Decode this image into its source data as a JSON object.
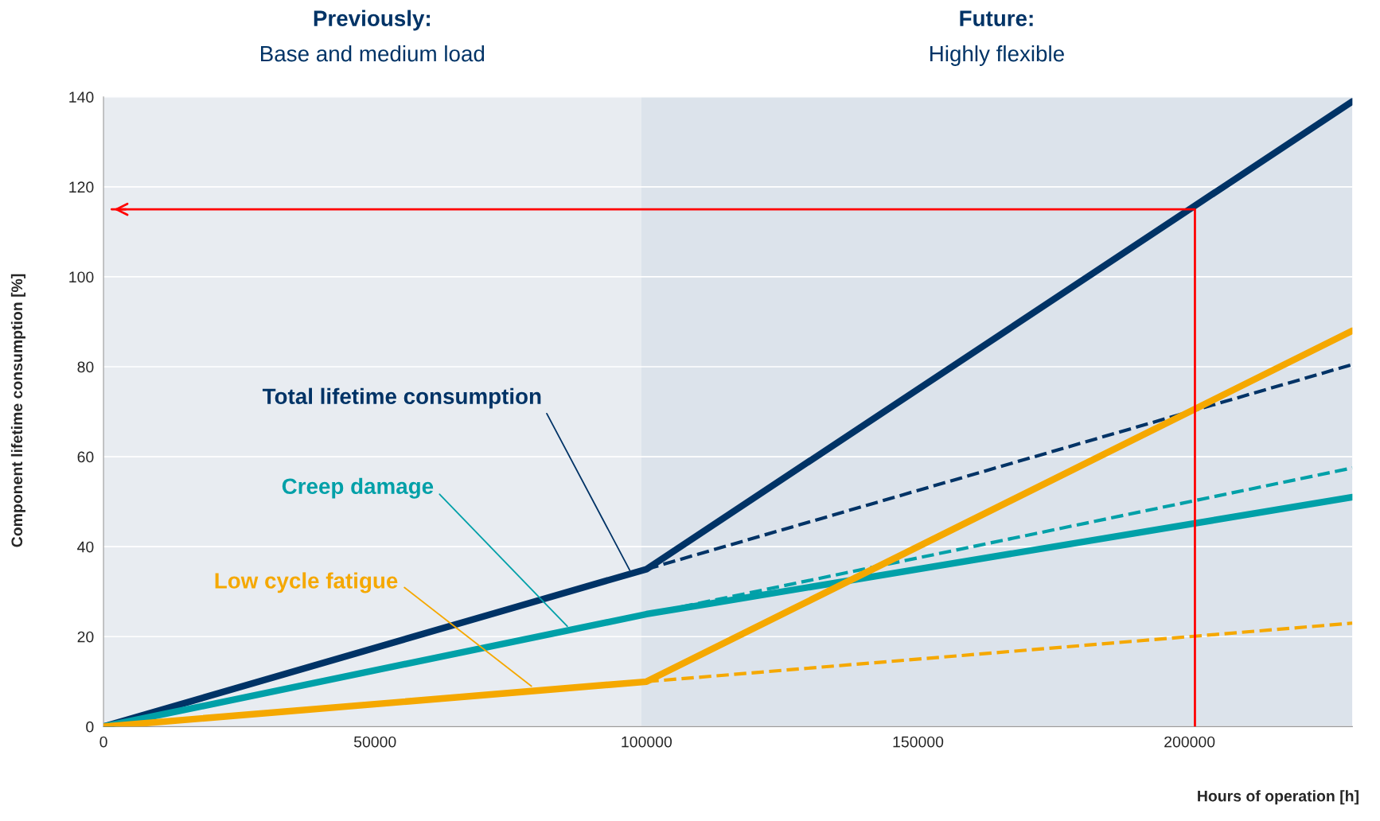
{
  "chart_data": {
    "type": "line",
    "xlabel": "Hours of operation [h]",
    "ylabel": "Component lifetime consumption [%]",
    "xlim": [
      0,
      230000
    ],
    "xticks": [
      0,
      50000,
      100000,
      150000,
      200000
    ],
    "ylim": [
      0,
      140
    ],
    "yticks": [
      0,
      20,
      40,
      60,
      80,
      100,
      120,
      140
    ],
    "grid": "y",
    "bands": [
      {
        "axis": "x",
        "from": 0,
        "to": 99000,
        "color": "#e8ecf1"
      },
      {
        "axis": "x",
        "from": 99000,
        "to": 230000,
        "color": "#dce3eb"
      }
    ],
    "series": [
      {
        "color": "#003366",
        "x": [
          0,
          100000,
          230000
        ],
        "values": [
          0,
          35,
          139
        ],
        "line_style": "solid"
      },
      {
        "color": "#003366",
        "x": [
          100000,
          230000
        ],
        "values": [
          35,
          80.5
        ],
        "line_style": "dashed"
      },
      {
        "color": "#00a0a8",
        "x": [
          0,
          100000,
          230000
        ],
        "values": [
          0,
          25,
          51
        ],
        "line_style": "solid"
      },
      {
        "color": "#00a0a8",
        "x": [
          100000,
          230000
        ],
        "values": [
          25,
          57.5
        ],
        "line_style": "dashed"
      },
      {
        "color": "#f5a800",
        "x": [
          0,
          100000,
          230000
        ],
        "values": [
          0,
          10,
          88
        ],
        "line_style": "solid"
      },
      {
        "color": "#f5a800",
        "x": [
          100000,
          230000
        ],
        "values": [
          10,
          23
        ],
        "line_style": "dashed"
      },
      {
        "color": "#ff0000",
        "x": [
          201000,
          201000,
          1500
        ],
        "values": [
          0,
          115,
          115
        ],
        "line_style": "solid"
      }
    ],
    "annotations": [
      "Previously:",
      "Base and medium load",
      "Future:",
      "Highly flexible",
      {
        "text": "Total lifetime consumption",
        "x": 96900,
        "y": 34.8
      },
      {
        "text": "Creep damage",
        "x": 85400,
        "y": 22.3
      },
      {
        "text": "Low cycle fatigue",
        "x": 78800,
        "y": 9
      }
    ]
  }
}
